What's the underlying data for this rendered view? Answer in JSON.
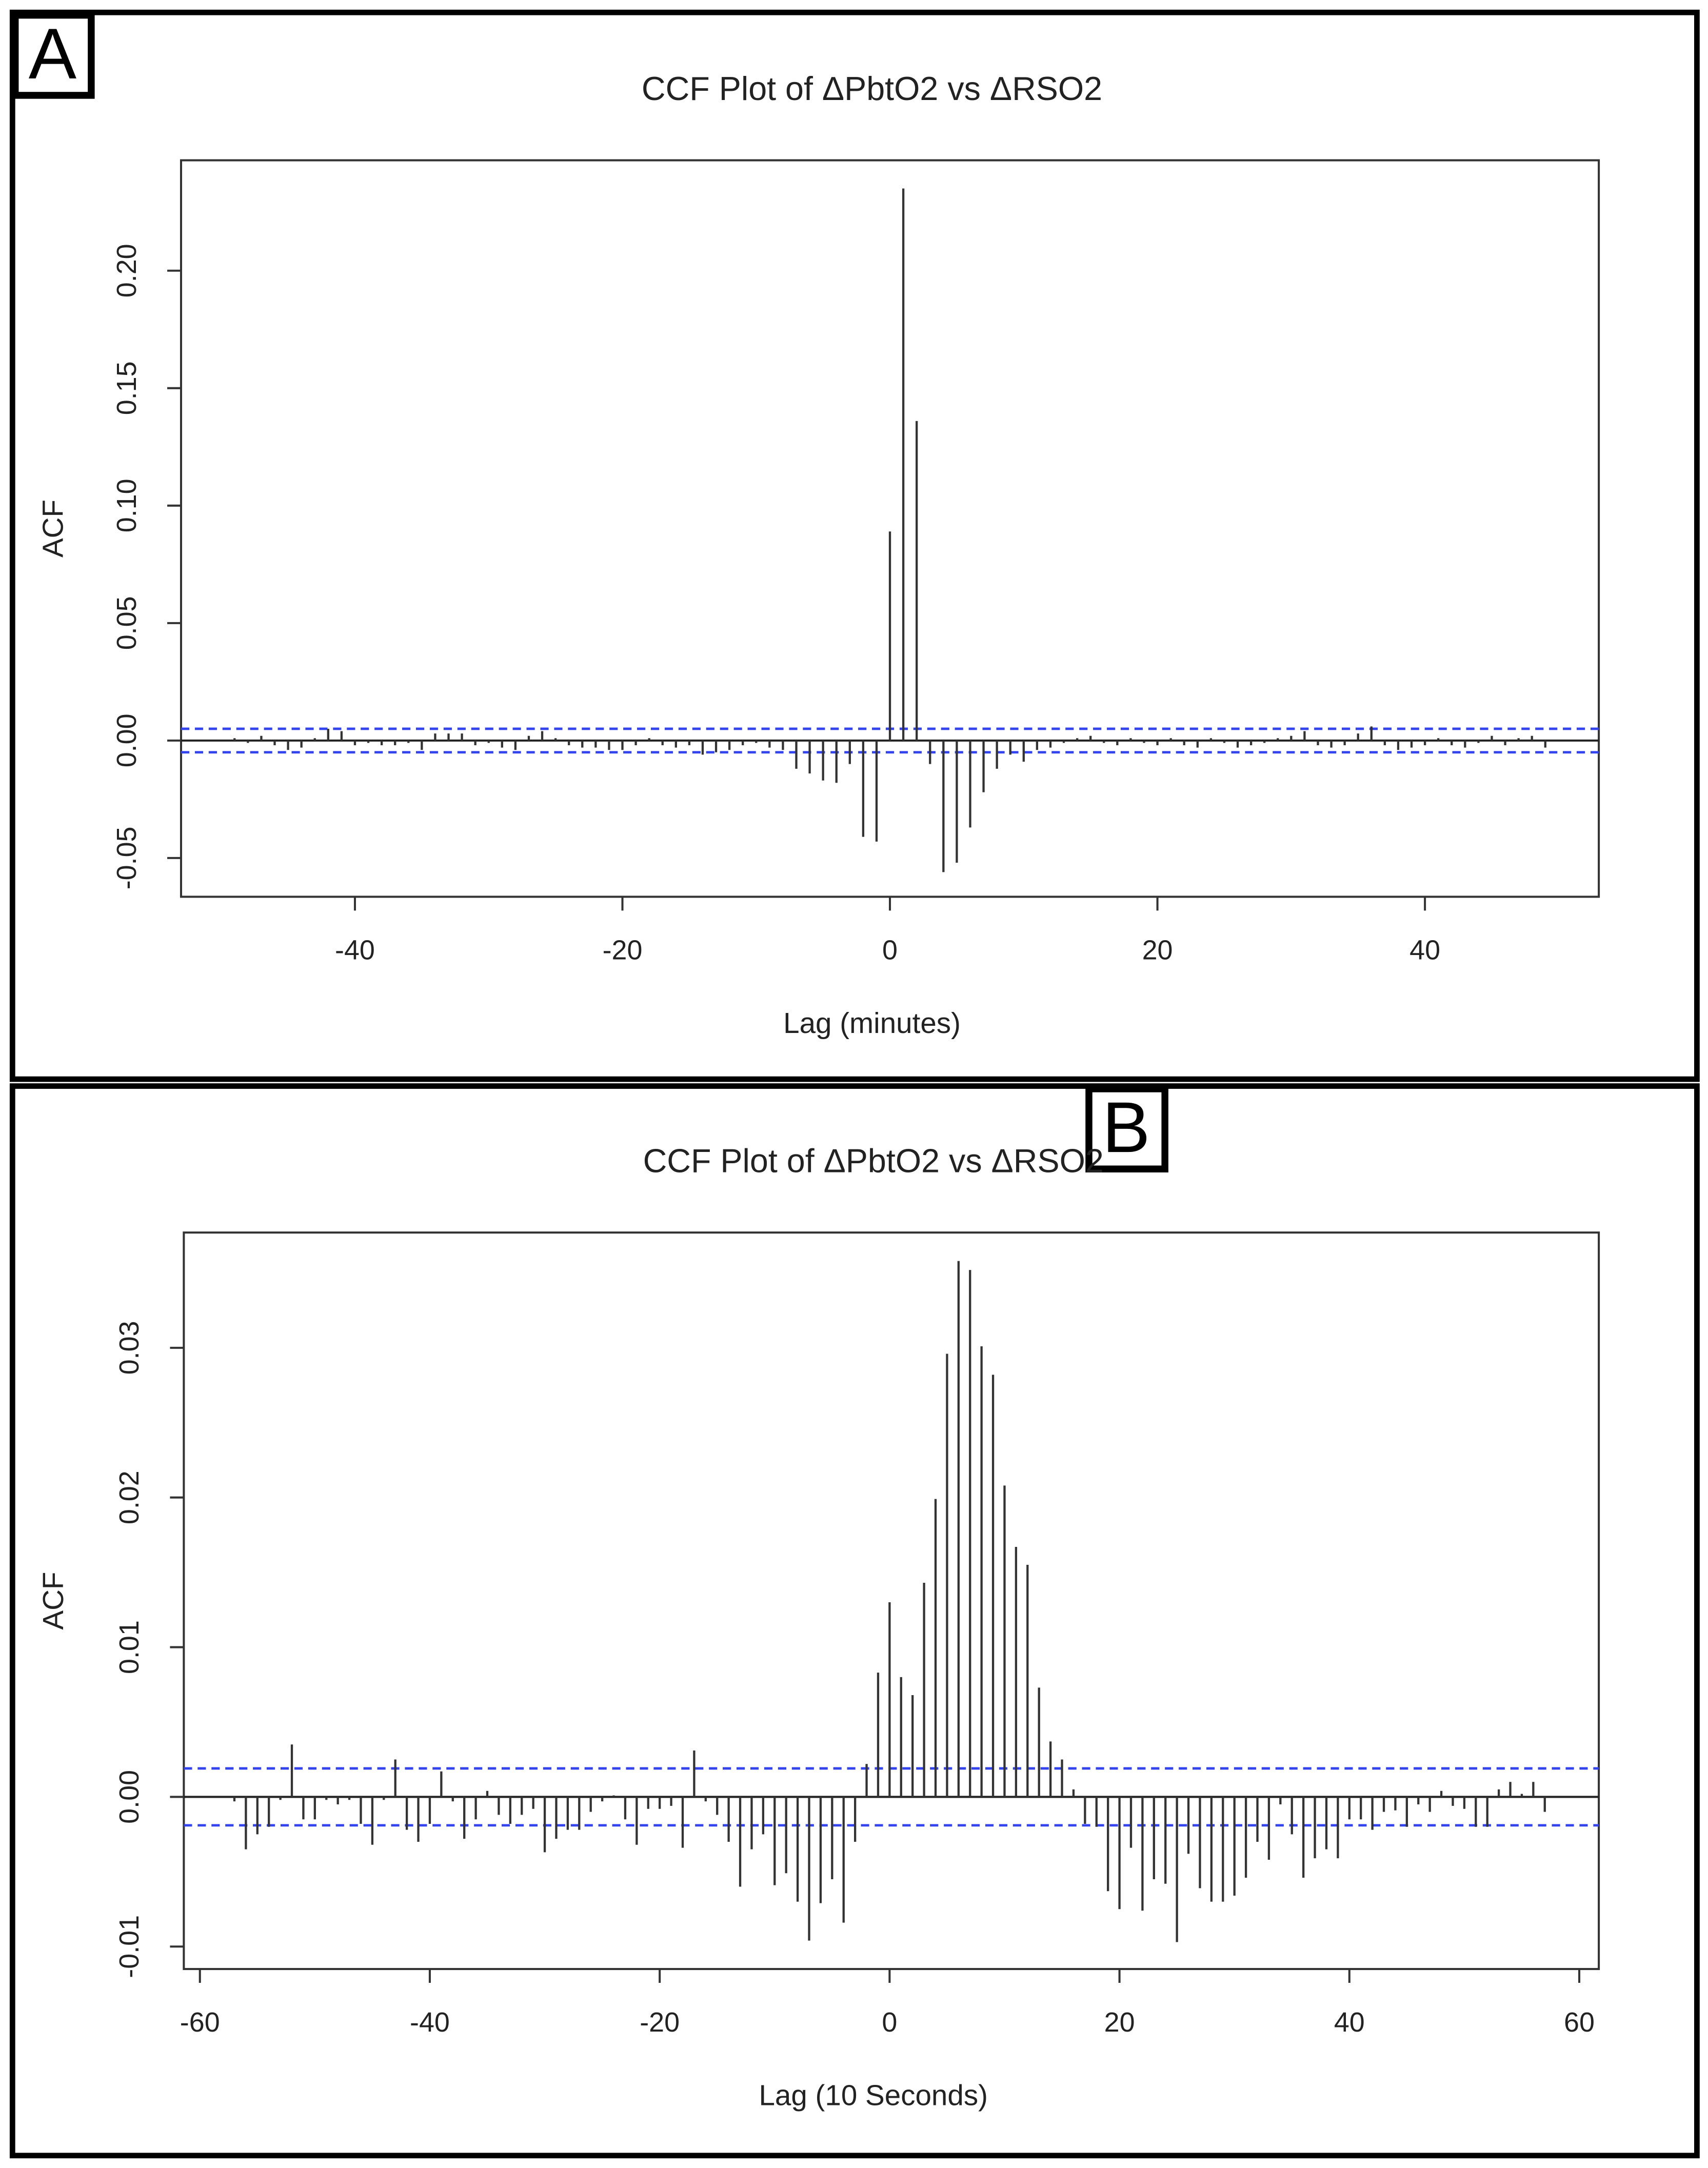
{
  "chart_data": [
    {
      "type": "bar",
      "label": "A",
      "title": "CCF Plot of ΔPbtO2 vs ΔRSO2",
      "x_label": "Lag (minutes)",
      "y_label": "ACF",
      "color": "#333333",
      "x": [
        -49,
        -48,
        -47,
        -46,
        -45,
        -44,
        -43,
        -42,
        -41,
        -40,
        -39,
        -38,
        -37,
        -36,
        -35,
        -34,
        -33,
        -32,
        -31,
        -30,
        -29,
        -28,
        -27,
        -26,
        -25,
        -24,
        -23,
        -22,
        -21,
        -20,
        -19,
        -18,
        -17,
        -16,
        -15,
        -14,
        -13,
        -12,
        -11,
        -10,
        -9,
        -8,
        -7,
        -6,
        -5,
        -4,
        -3,
        -2,
        -1,
        0,
        1,
        2,
        3,
        4,
        5,
        6,
        7,
        8,
        9,
        10,
        11,
        12,
        13,
        14,
        15,
        16,
        17,
        18,
        19,
        20,
        21,
        22,
        23,
        24,
        25,
        26,
        27,
        28,
        29,
        30,
        31,
        32,
        33,
        34,
        35,
        36,
        37,
        38,
        39,
        40,
        41,
        42,
        43,
        44,
        45,
        46,
        47,
        48,
        49
      ],
      "values": [
        0.001,
        -0.001,
        0.002,
        -0.002,
        -0.004,
        -0.003,
        0.001,
        0.005,
        0.004,
        -0.002,
        -0.001,
        -0.002,
        -0.002,
        -0.001,
        -0.004,
        0.003,
        0.003,
        0.003,
        -0.002,
        -0.001,
        -0.003,
        -0.004,
        0.002,
        0.004,
        0.001,
        -0.002,
        -0.003,
        -0.003,
        -0.004,
        -0.004,
        -0.002,
        0.001,
        -0.002,
        -0.003,
        -0.002,
        -0.006,
        -0.005,
        -0.004,
        -0.002,
        -0.001,
        -0.003,
        -0.004,
        -0.012,
        -0.014,
        -0.017,
        -0.018,
        -0.01,
        -0.041,
        -0.043,
        0.089,
        0.235,
        0.136,
        -0.01,
        -0.056,
        -0.052,
        -0.037,
        -0.022,
        -0.012,
        -0.006,
        -0.009,
        -0.004,
        -0.003,
        -0.001,
        0.001,
        0.002,
        -0.001,
        -0.002,
        0.001,
        -0.001,
        -0.002,
        0.001,
        -0.002,
        -0.003,
        0.001,
        -0.001,
        -0.003,
        -0.002,
        -0.001,
        0.001,
        0.002,
        0.004,
        -0.002,
        -0.003,
        -0.002,
        0.003,
        0.006,
        -0.002,
        -0.004,
        -0.003,
        -0.002,
        0.001,
        -0.002,
        -0.003,
        -0.001,
        0.002,
        -0.002,
        0.001,
        0.002,
        -0.003
      ],
      "xlim": [
        -53,
        53
      ],
      "ylim": [
        -0.0665,
        0.247
      ],
      "xticks": [
        -40,
        -20,
        0,
        20,
        40
      ],
      "yticks": [
        {
          "value": -0.05,
          "label": "-0.05"
        },
        {
          "value": 0,
          "label": "0.00"
        },
        {
          "value": 0.05,
          "label": "0.05"
        },
        {
          "value": 0.1,
          "label": "0.10"
        },
        0.15,
        {
          "value": 0.2,
          "label": "0.20"
        }
      ],
      "ci_bounds": [
        0.005,
        -0.005
      ],
      "ci_color": "#3344ee"
    },
    {
      "type": "bar",
      "label": "B",
      "title": "CCF Plot of ΔPbtO2 vs ΔRSO2",
      "x_label": "Lag (10 Seconds)",
      "y_label": "ACF",
      "color": "#333333",
      "x": [
        -57,
        -56,
        -55,
        -54,
        -53,
        -52,
        -51,
        -50,
        -49,
        -48,
        -47,
        -46,
        -45,
        -44,
        -43,
        -42,
        -41,
        -40,
        -39,
        -38,
        -37,
        -36,
        -35,
        -34,
        -33,
        -32,
        -31,
        -30,
        -29,
        -28,
        -27,
        -26,
        -25,
        -24,
        -23,
        -22,
        -21,
        -20,
        -19,
        -18,
        -17,
        -16,
        -15,
        -14,
        -13,
        -12,
        -11,
        -10,
        -9,
        -8,
        -7,
        -6,
        -5,
        -4,
        -3,
        -2,
        -1,
        0,
        1,
        2,
        3,
        4,
        5,
        6,
        7,
        8,
        9,
        10,
        11,
        12,
        13,
        14,
        15,
        16,
        17,
        18,
        19,
        20,
        21,
        22,
        23,
        24,
        25,
        26,
        27,
        28,
        29,
        30,
        31,
        32,
        33,
        34,
        35,
        36,
        37,
        38,
        39,
        40,
        41,
        42,
        43,
        44,
        45,
        46,
        47,
        48,
        49,
        50,
        51,
        52,
        53,
        54,
        55,
        56,
        57
      ],
      "values": [
        -0.0003,
        -0.0035,
        -0.0025,
        -0.002,
        -0.0002,
        0.0035,
        -0.0015,
        -0.0015,
        -0.0002,
        -0.0005,
        -0.0002,
        -0.0018,
        -0.0032,
        -0.0002,
        0.0025,
        -0.0022,
        -0.003,
        -0.0018,
        0.0017,
        -0.0003,
        -0.0028,
        -0.0015,
        0.0004,
        -0.0012,
        -0.0018,
        -0.0012,
        -0.0008,
        -0.0037,
        -0.0028,
        -0.0022,
        -0.0022,
        -0.001,
        -0.0003,
        0.0001,
        -0.0015,
        -0.0032,
        -0.0008,
        -0.0008,
        -0.0006,
        -0.0034,
        0.0031,
        -0.0003,
        -0.0012,
        -0.003,
        -0.006,
        -0.0035,
        -0.0025,
        -0.0059,
        -0.0051,
        -0.007,
        -0.0096,
        -0.0071,
        -0.0055,
        -0.0084,
        -0.003,
        0.0022,
        0.0083,
        0.013,
        0.008,
        0.0068,
        0.0143,
        0.0199,
        0.0296,
        0.0358,
        0.0352,
        0.0301,
        0.0282,
        0.0208,
        0.0167,
        0.0155,
        0.0073,
        0.0037,
        0.0025,
        0.0005,
        -0.0018,
        -0.002,
        -0.0063,
        -0.0075,
        -0.0034,
        -0.0076,
        -0.0055,
        -0.0058,
        -0.0097,
        -0.0038,
        -0.0061,
        -0.007,
        -0.007,
        -0.0066,
        -0.0054,
        -0.003,
        -0.0042,
        -0.0005,
        -0.0025,
        -0.0054,
        -0.0041,
        -0.0035,
        -0.0041,
        -0.0015,
        -0.0015,
        -0.0022,
        -0.001,
        -0.0009,
        -0.002,
        -0.0005,
        -0.001,
        0.0004,
        -0.0006,
        -0.0008,
        -0.002,
        -0.002,
        0.0005,
        0.001,
        0.0002,
        0.001,
        -0.001
      ],
      "xlim": [
        -61.4,
        61.7
      ],
      "ylim": [
        -0.0115,
        0.0377
      ],
      "xticks": [
        -60,
        -40,
        -20,
        0,
        20,
        40,
        60
      ],
      "yticks": [
        -0.01,
        {
          "value": 0,
          "label": "0.00"
        },
        0.01,
        0.02,
        0.03
      ],
      "ci_bounds": [
        0.0019,
        -0.0019
      ],
      "ci_color": "#3344ee"
    }
  ]
}
